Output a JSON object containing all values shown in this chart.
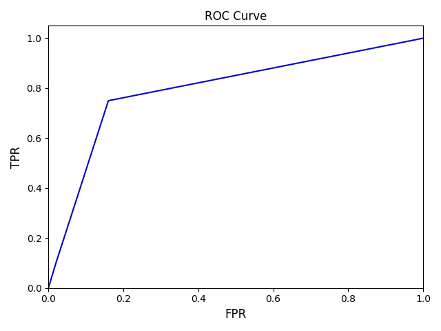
{
  "title": "ROC Curve",
  "xlabel": "FPR",
  "ylabel": "TPR",
  "fpr": [
    0.0,
    0.02,
    0.16,
    1.0
  ],
  "tpr": [
    0.0,
    0.1,
    0.75,
    1.0
  ],
  "line_color": "#0000cc",
  "line_width": 1.5,
  "xlim": [
    0.0,
    1.0
  ],
  "ylim": [
    0.0,
    1.05
  ],
  "title_fontsize": 12,
  "label_fontsize": 12,
  "background_color": "#ffffff"
}
